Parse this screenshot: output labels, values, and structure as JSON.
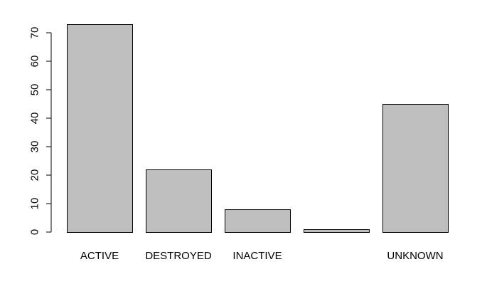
{
  "chart_data": {
    "type": "bar",
    "categories": [
      "ACTIVE",
      "DESTROYED",
      "INACTIVE",
      "",
      "UNKNOWN"
    ],
    "values": [
      73,
      22,
      8,
      1,
      45
    ],
    "title": "",
    "xlabel": "",
    "ylabel": "",
    "ylim": [
      0,
      70
    ],
    "yticks": [
      0,
      10,
      20,
      30,
      40,
      50,
      60,
      70
    ],
    "grid": false,
    "legend": "none",
    "colors": {
      "bar_fill": "#bebebe",
      "bar_stroke": "#000000",
      "axis": "#000000",
      "background": "#ffffff"
    }
  }
}
